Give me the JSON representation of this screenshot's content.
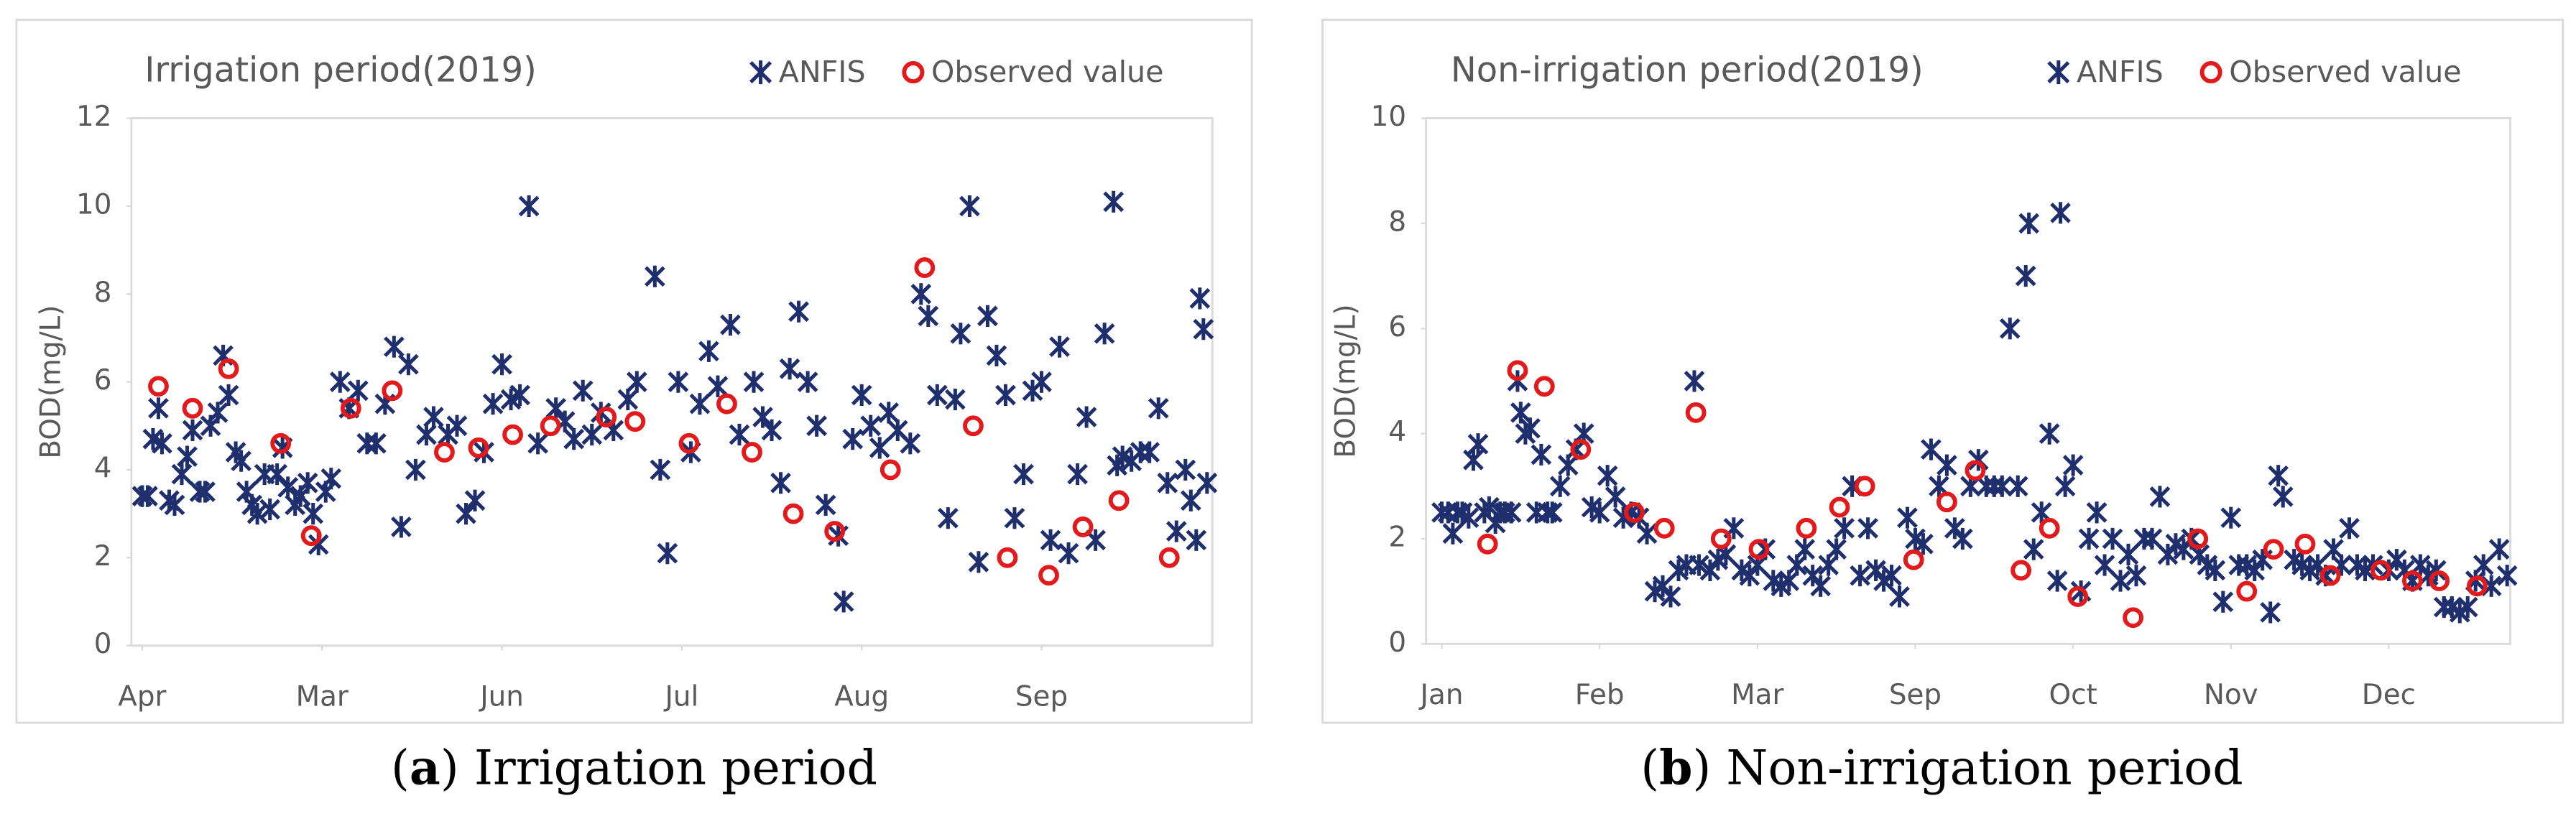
{
  "chart_data": [
    {
      "type": "scatter",
      "title": "Irrigation period(2019)",
      "ylabel": "BOD(mg/L)",
      "caption": [
        "(",
        "a",
        ") Irrigation period"
      ],
      "legend": "top-right",
      "grid": false,
      "xlim": [
        -0.06,
        5.95
      ],
      "xticks": [
        {
          "value": 0,
          "label": "Apr"
        },
        {
          "value": 1,
          "label": "Mar"
        },
        {
          "value": 2,
          "label": "Jun"
        },
        {
          "value": 3,
          "label": "Jul"
        },
        {
          "value": 4,
          "label": "Aug"
        },
        {
          "value": 5,
          "label": "Sep"
        }
      ],
      "ylim": [
        0,
        12
      ],
      "yticks": [
        0,
        2,
        4,
        6,
        8,
        10,
        12
      ],
      "series": [
        {
          "name": "ANFIS",
          "color": "#1f2f6e",
          "marker": "asterisk",
          "x": [
            0.0,
            0.03,
            0.06,
            0.09,
            0.11,
            0.15,
            0.18,
            0.22,
            0.25,
            0.28,
            0.32,
            0.35,
            0.38,
            0.42,
            0.45,
            0.48,
            0.52,
            0.55,
            0.58,
            0.61,
            0.64,
            0.68,
            0.71,
            0.75,
            0.78,
            0.81,
            0.85,
            0.88,
            0.92,
            0.95,
            0.98,
            1.02,
            1.05,
            1.1,
            1.15,
            1.2,
            1.25,
            1.3,
            1.35,
            1.4,
            1.44,
            1.48,
            1.52,
            1.58,
            1.62,
            1.7,
            1.75,
            1.8,
            1.85,
            1.9,
            1.95,
            2.0,
            2.05,
            2.1,
            2.15,
            2.2,
            2.3,
            2.35,
            2.4,
            2.45,
            2.5,
            2.55,
            2.62,
            2.7,
            2.75,
            2.85,
            2.88,
            2.92,
            2.98,
            3.05,
            3.1,
            3.15,
            3.2,
            3.27,
            3.32,
            3.4,
            3.45,
            3.5,
            3.55,
            3.6,
            3.65,
            3.7,
            3.75,
            3.8,
            3.87,
            3.9,
            3.95,
            4.0,
            4.05,
            4.1,
            4.15,
            4.2,
            4.27,
            4.33,
            4.37,
            4.42,
            4.48,
            4.52,
            4.55,
            4.6,
            4.65,
            4.7,
            4.75,
            4.8,
            4.85,
            4.9,
            4.95,
            5.0,
            5.05,
            5.1,
            5.15,
            5.2,
            5.25,
            5.3,
            5.35,
            5.4,
            5.42,
            5.45,
            5.5,
            5.55,
            5.6,
            5.65,
            5.7,
            5.75,
            5.8,
            5.83,
            5.86,
            5.88,
            5.9,
            5.92
          ],
          "values": [
            3.4,
            3.4,
            4.7,
            5.4,
            4.6,
            3.3,
            3.2,
            3.9,
            4.3,
            4.9,
            3.5,
            3.5,
            5.0,
            5.3,
            6.6,
            5.7,
            4.4,
            4.2,
            3.5,
            3.2,
            3.0,
            3.9,
            3.1,
            3.9,
            4.5,
            3.6,
            3.2,
            3.4,
            3.7,
            3.0,
            2.3,
            3.5,
            3.8,
            6.0,
            5.4,
            5.8,
            4.6,
            4.6,
            5.5,
            6.8,
            2.7,
            6.4,
            4.0,
            4.8,
            5.2,
            4.8,
            5.0,
            3.0,
            3.3,
            4.4,
            5.5,
            6.4,
            5.6,
            5.7,
            10.0,
            4.6,
            5.4,
            5.1,
            4.7,
            5.8,
            4.8,
            5.3,
            4.9,
            5.6,
            6.0,
            8.4,
            4.0,
            2.1,
            6.0,
            4.4,
            5.5,
            6.7,
            5.9,
            7.3,
            4.8,
            6.0,
            5.2,
            4.9,
            3.7,
            6.3,
            7.6,
            6.0,
            5.0,
            3.2,
            2.5,
            1.0,
            4.7,
            5.7,
            5.0,
            4.5,
            5.3,
            4.9,
            4.6,
            8.0,
            7.5,
            5.7,
            2.9,
            5.6,
            7.1,
            10.0,
            1.9,
            7.5,
            6.6,
            5.7,
            2.9,
            3.9,
            5.8,
            6.0,
            2.4,
            6.8,
            2.1,
            3.9,
            5.2,
            2.4,
            7.1,
            10.1,
            4.1,
            4.3,
            4.2,
            4.4,
            4.4,
            5.4,
            3.7,
            2.6,
            4.0,
            3.3,
            2.4,
            7.9,
            7.2,
            3.7
          ]
        },
        {
          "name": "Observed value",
          "color": "#e31a1c",
          "marker": "circle",
          "x": [
            0.09,
            0.28,
            0.48,
            0.77,
            0.94,
            1.16,
            1.39,
            1.68,
            1.87,
            2.06,
            2.27,
            2.58,
            2.74,
            3.04,
            3.25,
            3.39,
            3.62,
            3.85,
            4.16,
            4.35,
            4.62,
            4.81,
            5.04,
            5.23,
            5.43,
            5.71
          ],
          "values": [
            5.9,
            5.4,
            6.3,
            4.6,
            2.5,
            5.4,
            5.8,
            4.4,
            4.5,
            4.8,
            5.0,
            5.2,
            5.1,
            4.6,
            5.5,
            4.4,
            3.0,
            2.6,
            4.0,
            8.6,
            5.0,
            2.0,
            1.6,
            2.7,
            3.3,
            2.0
          ]
        }
      ]
    },
    {
      "type": "scatter",
      "title": "Non-irrigation period(2019)",
      "ylabel": "BOD(mg/L)",
      "caption": [
        "(",
        "b",
        ") Non-irrigation period"
      ],
      "legend": "top-right",
      "grid": false,
      "xlim": [
        -0.1,
        6.77
      ],
      "xticks": [
        {
          "value": 0,
          "label": "Jan"
        },
        {
          "value": 1,
          "label": "Feb"
        },
        {
          "value": 2,
          "label": "Mar"
        },
        {
          "value": 3,
          "label": "Sep"
        },
        {
          "value": 4,
          "label": "Oct"
        },
        {
          "value": 5,
          "label": "Nov"
        },
        {
          "value": 6,
          "label": "Dec"
        }
      ],
      "ylim": [
        0,
        10
      ],
      "yticks": [
        0,
        2,
        4,
        6,
        8,
        10
      ],
      "series": [
        {
          "name": "ANFIS",
          "color": "#1f2f6e",
          "marker": "asterisk",
          "x": [
            0.0,
            0.04,
            0.07,
            0.1,
            0.13,
            0.17,
            0.2,
            0.23,
            0.27,
            0.3,
            0.34,
            0.37,
            0.4,
            0.44,
            0.48,
            0.5,
            0.53,
            0.56,
            0.6,
            0.63,
            0.67,
            0.7,
            0.75,
            0.8,
            0.85,
            0.9,
            0.95,
            1.0,
            1.05,
            1.1,
            1.15,
            1.2,
            1.25,
            1.3,
            1.35,
            1.4,
            1.45,
            1.5,
            1.55,
            1.6,
            1.63,
            1.7,
            1.75,
            1.8,
            1.85,
            1.9,
            1.95,
            2.0,
            2.05,
            2.1,
            2.15,
            2.2,
            2.25,
            2.3,
            2.35,
            2.4,
            2.45,
            2.5,
            2.55,
            2.6,
            2.65,
            2.7,
            2.75,
            2.8,
            2.85,
            2.9,
            2.95,
            3.0,
            3.05,
            3.1,
            3.15,
            3.2,
            3.25,
            3.3,
            3.35,
            3.4,
            3.45,
            3.5,
            3.55,
            3.6,
            3.65,
            3.7,
            3.72,
            3.75,
            3.8,
            3.85,
            3.9,
            3.92,
            3.95,
            4.0,
            4.05,
            4.1,
            4.15,
            4.2,
            4.25,
            4.3,
            4.35,
            4.4,
            4.45,
            4.5,
            4.55,
            4.6,
            4.65,
            4.7,
            4.75,
            4.8,
            4.85,
            4.9,
            4.95,
            5.0,
            5.05,
            5.1,
            5.15,
            5.2,
            5.25,
            5.3,
            5.33,
            5.4,
            5.45,
            5.5,
            5.55,
            5.6,
            5.65,
            5.7,
            5.75,
            5.8,
            5.85,
            5.9,
            6.0,
            6.05,
            6.1,
            6.15,
            6.2,
            6.25,
            6.3,
            6.35,
            6.4,
            6.45,
            6.5,
            6.55,
            6.6,
            6.65,
            6.7,
            6.75
          ],
          "values": [
            2.5,
            2.5,
            2.1,
            2.5,
            2.5,
            2.4,
            3.5,
            3.8,
            2.5,
            2.6,
            2.3,
            2.5,
            2.5,
            2.5,
            5.0,
            4.4,
            4.0,
            4.1,
            2.5,
            3.6,
            2.5,
            2.5,
            3.0,
            3.4,
            3.7,
            4.0,
            2.6,
            2.5,
            3.2,
            2.8,
            2.4,
            2.5,
            2.4,
            2.1,
            1.0,
            1.1,
            0.9,
            1.4,
            1.5,
            5.0,
            1.5,
            1.4,
            1.6,
            1.7,
            2.2,
            1.4,
            1.3,
            1.5,
            1.8,
            1.2,
            1.1,
            1.2,
            1.5,
            1.8,
            1.3,
            1.1,
            1.5,
            1.8,
            2.2,
            3.0,
            1.3,
            2.2,
            1.4,
            1.2,
            1.3,
            0.9,
            2.4,
            2.0,
            1.9,
            3.7,
            3.0,
            3.4,
            2.2,
            2.0,
            3.0,
            3.5,
            3.0,
            3.0,
            3.0,
            6.0,
            3.0,
            7.0,
            8.0,
            1.8,
            2.5,
            4.0,
            1.2,
            8.2,
            3.0,
            3.4,
            1.0,
            2.0,
            2.5,
            1.5,
            2.0,
            1.2,
            1.7,
            1.3,
            2.0,
            2.0,
            2.8,
            1.7,
            1.9,
            1.8,
            2.0,
            1.7,
            1.5,
            1.4,
            0.8,
            2.4,
            1.5,
            1.5,
            1.4,
            1.6,
            0.6,
            3.2,
            2.8,
            1.6,
            1.5,
            1.4,
            1.5,
            1.3,
            1.8,
            1.5,
            2.2,
            1.5,
            1.4,
            1.5,
            1.4,
            1.6,
            1.4,
            1.2,
            1.5,
            1.3,
            1.4,
            0.7,
            0.7,
            0.6,
            0.7,
            1.2,
            1.5,
            1.1,
            1.8,
            1.3
          ]
        },
        {
          "name": "Observed value",
          "color": "#e31a1c",
          "marker": "circle",
          "x": [
            0.29,
            0.48,
            0.65,
            0.88,
            1.22,
            1.41,
            1.61,
            1.77,
            2.01,
            2.31,
            2.52,
            2.68,
            2.99,
            3.2,
            3.38,
            3.67,
            3.85,
            4.03,
            4.38,
            4.79,
            5.1,
            5.27,
            5.47,
            5.63,
            5.95,
            6.15,
            6.32,
            6.56
          ],
          "values": [
            1.9,
            5.2,
            4.9,
            3.7,
            2.5,
            2.2,
            4.4,
            2.0,
            1.8,
            2.2,
            2.6,
            3.0,
            1.6,
            2.7,
            3.3,
            1.4,
            2.2,
            0.9,
            0.5,
            2.0,
            1.0,
            1.8,
            1.9,
            1.3,
            1.4,
            1.2,
            1.2,
            1.1
          ]
        }
      ]
    }
  ]
}
